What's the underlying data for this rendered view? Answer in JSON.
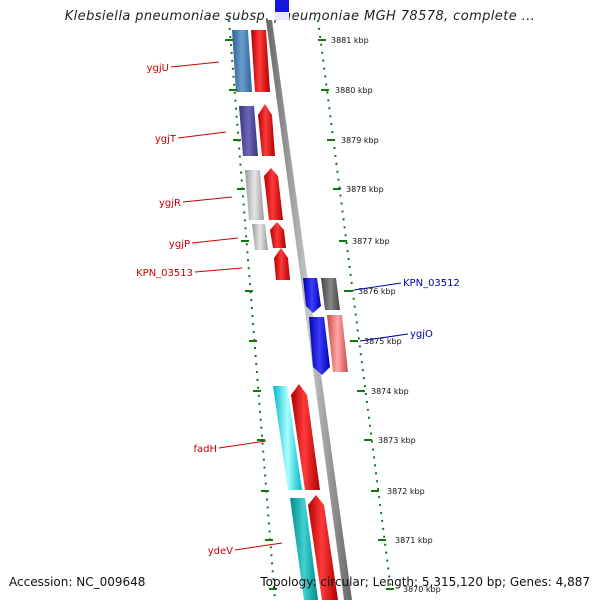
{
  "header": {
    "title": "Klebsiella pneumoniae subsp. pneumoniae MGH 78578, complete ..."
  },
  "footer": {
    "accession": "Accession: NC_009648",
    "summary": "Topology: circular; Length: 5,315,120 bp; Genes: 4,887"
  },
  "map": {
    "ticks": [
      "3881 kbp",
      "3880 kbp",
      "3879 kbp",
      "3878 kbp",
      "3877 kbp",
      "3876 kbp",
      "3875 kbp",
      "3874 kbp",
      "3873 kbp",
      "3872 kbp",
      "3871 kbp",
      "3870 kbp"
    ],
    "genes_left": [
      {
        "name": "ygjU",
        "color": "#cc0000"
      },
      {
        "name": "ygjT",
        "color": "#cc0000"
      },
      {
        "name": "ygjR",
        "color": "#cc0000"
      },
      {
        "name": "ygjP",
        "color": "#cc0000"
      },
      {
        "name": "KPN_03513",
        "color": "#cc0000"
      },
      {
        "name": "fadH",
        "color": "#cc0000"
      },
      {
        "name": "ydeV",
        "color": "#cc0000"
      }
    ],
    "genes_right": [
      {
        "name": "KPN_03512",
        "color": "#0000aa"
      },
      {
        "name": "ygjO",
        "color": "#0000aa"
      }
    ],
    "colors": {
      "backbone": "#888888",
      "tick": "#117711",
      "forward_strand": "#ff0000",
      "reverse_strand": "#0000ee"
    }
  }
}
